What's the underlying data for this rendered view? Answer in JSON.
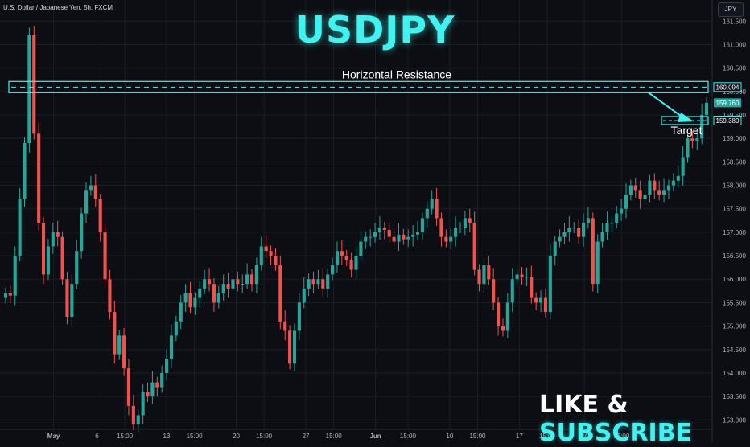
{
  "header": {
    "symbol_text": "U.S. Dollar / Japanese Yen, 5h, FXCM",
    "title": "USDJPY",
    "currency_button": "JPY"
  },
  "overlay": {
    "like_text": "LIKE",
    "amp_text": "&",
    "subscribe_text": "SUBSCRIBE"
  },
  "colors": {
    "background": "#0c0e13",
    "up": "#26a69a",
    "down": "#ef5350",
    "accent": "#3ff3f0",
    "grid": "#1b1e26"
  },
  "chart_data": {
    "type": "candlestick",
    "ylim": [
      152.8,
      161.95
    ],
    "y_ticks": [
      "161.500",
      "161.000",
      "160.500",
      "160.000",
      "159.500",
      "159.000",
      "158.500",
      "158.000",
      "157.500",
      "157.000",
      "156.500",
      "156.000",
      "155.500",
      "155.000",
      "154.500",
      "154.000",
      "153.500",
      "153.000"
    ],
    "x_ticks": [
      "May",
      "6",
      "15:00",
      "13",
      "15:00",
      "20",
      "15:00",
      "27",
      "15:00",
      "Jun",
      "15:00",
      "10",
      "15:00",
      "17",
      "15:00",
      "24",
      "15:00"
    ],
    "price_labels": [
      {
        "value": 160.094,
        "text": "160.094",
        "style": "outline"
      },
      {
        "value": 159.76,
        "text": "159.760",
        "style": "up"
      },
      {
        "value": 159.38,
        "text": "159.380",
        "style": "outline"
      }
    ],
    "annotations": {
      "resistance_label": "Horizontal Resistance",
      "resistance_level": 160.094,
      "target_label": "Target",
      "target_level": 159.38
    },
    "closes": [
      155.7,
      155.65,
      156.5,
      157.7,
      158.9,
      161.2,
      159.1,
      157.2,
      156.1,
      156.7,
      157.0,
      156.9,
      156.0,
      155.2,
      155.9,
      156.6,
      157.4,
      157.9,
      158.0,
      157.7,
      157.0,
      156.0,
      155.3,
      154.4,
      154.8,
      154.1,
      153.3,
      152.9,
      153.1,
      153.6,
      153.5,
      153.8,
      153.7,
      154.0,
      154.3,
      154.8,
      155.1,
      155.5,
      155.7,
      155.4,
      155.6,
      155.8,
      156.0,
      155.9,
      155.5,
      155.7,
      155.9,
      155.8,
      156.0,
      155.9,
      155.9,
      156.1,
      155.9,
      156.3,
      156.7,
      156.6,
      156.5,
      156.3,
      155.1,
      154.9,
      154.2,
      154.9,
      155.5,
      155.8,
      156.0,
      155.9,
      156.0,
      155.8,
      156.1,
      156.3,
      156.6,
      156.5,
      156.4,
      156.2,
      156.5,
      156.8,
      156.9,
      156.9,
      157.0,
      157.1,
      157.05,
      156.9,
      156.8,
      156.95,
      156.85,
      156.9,
      156.95,
      157.0,
      157.3,
      157.5,
      157.7,
      157.3,
      156.9,
      156.8,
      156.9,
      157.1,
      157.1,
      157.3,
      157.2,
      156.2,
      155.9,
      156.3,
      156.0,
      155.5,
      155.0,
      154.9,
      155.5,
      156.0,
      156.1,
      156.05,
      156.05,
      155.6,
      155.5,
      155.6,
      155.3,
      156.5,
      156.8,
      156.9,
      157.0,
      157.1,
      157.1,
      156.9,
      157.2,
      157.3,
      155.9,
      156.8,
      157.0,
      157.2,
      157.2,
      157.4,
      157.5,
      157.8,
      158.0,
      157.9,
      157.7,
      157.8,
      158.1,
      157.9,
      157.8,
      157.9,
      158.0,
      158.1,
      158.2,
      158.6,
      159.0,
      158.95,
      159.0,
      159.5,
      159.76
    ],
    "opens": [
      155.6,
      155.7,
      155.65,
      156.5,
      157.7,
      158.9,
      161.2,
      159.1,
      157.2,
      156.1,
      156.7,
      157.0,
      156.9,
      156.0,
      155.2,
      155.9,
      156.6,
      157.4,
      157.9,
      158.0,
      157.7,
      157.0,
      156.0,
      155.3,
      154.4,
      154.8,
      154.1,
      153.3,
      152.9,
      153.1,
      153.6,
      153.5,
      153.8,
      153.7,
      154.0,
      154.3,
      154.8,
      155.1,
      155.5,
      155.7,
      155.4,
      155.6,
      155.8,
      156.0,
      155.9,
      155.5,
      155.7,
      155.9,
      155.8,
      156.0,
      155.9,
      155.9,
      156.1,
      155.9,
      156.3,
      156.7,
      156.6,
      156.5,
      156.3,
      155.1,
      154.9,
      154.2,
      154.9,
      155.5,
      155.8,
      156.0,
      155.9,
      156.0,
      155.8,
      156.1,
      156.3,
      156.6,
      156.5,
      156.4,
      156.2,
      156.5,
      156.8,
      156.9,
      156.9,
      157.0,
      157.1,
      157.05,
      156.9,
      156.8,
      156.95,
      156.85,
      156.9,
      156.95,
      157.0,
      157.3,
      157.5,
      157.7,
      157.3,
      156.9,
      156.8,
      156.9,
      157.1,
      157.1,
      157.3,
      157.2,
      156.2,
      155.9,
      156.3,
      156.0,
      155.5,
      155.0,
      154.9,
      155.5,
      156.0,
      156.1,
      156.05,
      156.05,
      155.6,
      155.5,
      155.6,
      155.3,
      156.5,
      156.8,
      156.9,
      157.0,
      157.1,
      157.1,
      156.9,
      157.2,
      157.3,
      155.9,
      156.8,
      157.0,
      157.2,
      157.2,
      157.4,
      157.5,
      157.8,
      158.0,
      157.9,
      157.7,
      157.8,
      158.1,
      157.9,
      157.8,
      157.9,
      158.0,
      158.1,
      158.2,
      158.6,
      159.0,
      158.95,
      159.0,
      159.5
    ]
  }
}
